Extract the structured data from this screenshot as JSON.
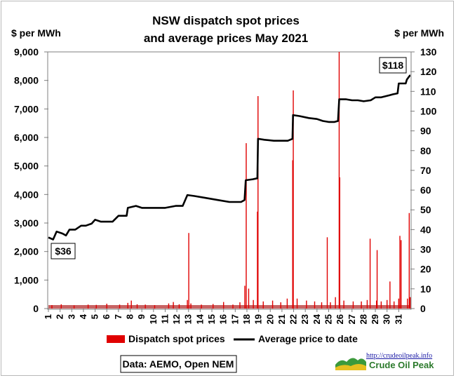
{
  "chart_data": {
    "type": "bar+line",
    "title_lines": [
      "NSW dispatch spot prices",
      "and average prices May 2021"
    ],
    "y_left_unit": "$ per MWh",
    "y_right_unit": "$ per MWh",
    "y_left_ticks": [
      "0",
      "1,000",
      "2,000",
      "3,000",
      "4,000",
      "5,000",
      "6,000",
      "7,000",
      "8,000",
      "9,000"
    ],
    "y_right_ticks": [
      "0",
      "10",
      "20",
      "30",
      "40",
      "50",
      "60",
      "70",
      "80",
      "90",
      "100",
      "110",
      "120",
      "130"
    ],
    "ylim_left": [
      0,
      9000
    ],
    "ylim_right": [
      0,
      130
    ],
    "x_ticks": [
      "1",
      "2",
      "3",
      "4",
      "5",
      "6",
      "7",
      "8",
      "9",
      "10",
      "11",
      "12",
      "13",
      "14",
      "15",
      "16",
      "17",
      "18",
      "19",
      "20",
      "21",
      "22",
      "23",
      "24",
      "25",
      "26",
      "27",
      "28",
      "29",
      "30",
      "31"
    ],
    "xlim_days": [
      1,
      32
    ],
    "legend": {
      "bar_label": "Dispatch spot prices",
      "line_label": "Average price to date",
      "placement": "bottom"
    },
    "colors": {
      "bars": "#e00000",
      "line": "#000000",
      "baseline_band": "#c86464"
    },
    "annotations": {
      "start_label": "$36",
      "end_label": "$118"
    },
    "source_text": "Data: AEMO, Open NEM",
    "logo": {
      "url_text": "http://crudeoilpeak.info",
      "name_text": "Crude Oil Peak"
    },
    "series": [
      {
        "name": "Dispatch spot prices",
        "axis": "left",
        "day_values": [
          [
            1.3,
            120
          ],
          [
            2.1,
            150
          ],
          [
            3.2,
            110
          ],
          [
            4.4,
            140
          ],
          [
            5.1,
            130
          ],
          [
            6.0,
            170
          ],
          [
            7.1,
            140
          ],
          [
            7.8,
            200
          ],
          [
            8.1,
            280
          ],
          [
            8.6,
            150
          ],
          [
            9.3,
            140
          ],
          [
            10.1,
            120
          ],
          [
            11.3,
            180
          ],
          [
            11.7,
            230
          ],
          [
            12.2,
            150
          ],
          [
            12.9,
            300
          ],
          [
            13.02,
            2650
          ],
          [
            13.2,
            180
          ],
          [
            14.1,
            140
          ],
          [
            15.1,
            160
          ],
          [
            16.0,
            230
          ],
          [
            16.8,
            140
          ],
          [
            17.4,
            220
          ],
          [
            17.82,
            800
          ],
          [
            17.94,
            5800
          ],
          [
            18.15,
            700
          ],
          [
            18.55,
            300
          ],
          [
            18.9,
            3400
          ],
          [
            18.95,
            7450
          ],
          [
            19.4,
            250
          ],
          [
            20.2,
            280
          ],
          [
            20.9,
            220
          ],
          [
            21.45,
            350
          ],
          [
            21.92,
            5200
          ],
          [
            21.97,
            7650
          ],
          [
            22.3,
            350
          ],
          [
            23.1,
            280
          ],
          [
            23.8,
            250
          ],
          [
            24.4,
            220
          ],
          [
            24.88,
            2500
          ],
          [
            25.15,
            220
          ],
          [
            25.58,
            400
          ],
          [
            25.9,
            9000
          ],
          [
            25.95,
            4600
          ],
          [
            26.3,
            280
          ],
          [
            27.1,
            250
          ],
          [
            27.8,
            250
          ],
          [
            28.3,
            300
          ],
          [
            28.55,
            2450
          ],
          [
            29.1,
            280
          ],
          [
            29.15,
            2050
          ],
          [
            29.5,
            250
          ],
          [
            30.0,
            300
          ],
          [
            30.25,
            950
          ],
          [
            30.6,
            250
          ],
          [
            31.0,
            350
          ],
          [
            31.1,
            2550
          ],
          [
            31.2,
            2400
          ],
          [
            31.75,
            350
          ],
          [
            31.9,
            3350
          ],
          [
            31.98,
            400
          ]
        ]
      },
      {
        "name": "Average price to date",
        "axis": "right",
        "day_values": [
          [
            1.0,
            36
          ],
          [
            1.4,
            35
          ],
          [
            1.7,
            39
          ],
          [
            2.2,
            38
          ],
          [
            2.5,
            37
          ],
          [
            2.8,
            40
          ],
          [
            3.3,
            40
          ],
          [
            3.8,
            42
          ],
          [
            4.2,
            42
          ],
          [
            4.7,
            43
          ],
          [
            5.0,
            45
          ],
          [
            5.5,
            44
          ],
          [
            6.0,
            44
          ],
          [
            6.5,
            44
          ],
          [
            7.0,
            47
          ],
          [
            7.7,
            47
          ],
          [
            7.8,
            51
          ],
          [
            8.5,
            52
          ],
          [
            9.0,
            51
          ],
          [
            10.0,
            51
          ],
          [
            11.0,
            51
          ],
          [
            11.9,
            52
          ],
          [
            12.5,
            52
          ],
          [
            12.9,
            57.5
          ],
          [
            13.5,
            57
          ],
          [
            14.5,
            56
          ],
          [
            15.5,
            55
          ],
          [
            16.5,
            54
          ],
          [
            17.5,
            54
          ],
          [
            17.8,
            55
          ],
          [
            17.9,
            65
          ],
          [
            18.5,
            65.5
          ],
          [
            18.9,
            66
          ],
          [
            18.95,
            86
          ],
          [
            19.5,
            85.5
          ],
          [
            20.3,
            85
          ],
          [
            21.0,
            85
          ],
          [
            21.5,
            85
          ],
          [
            21.9,
            86
          ],
          [
            21.95,
            98
          ],
          [
            22.5,
            97.5
          ],
          [
            23.3,
            96.5
          ],
          [
            24.0,
            96
          ],
          [
            24.5,
            95
          ],
          [
            25.0,
            94.5
          ],
          [
            25.5,
            94.5
          ],
          [
            25.8,
            95
          ],
          [
            25.9,
            106
          ],
          [
            26.5,
            106
          ],
          [
            27.0,
            105.5
          ],
          [
            27.5,
            105.5
          ],
          [
            28.0,
            105
          ],
          [
            28.6,
            105.5
          ],
          [
            29.0,
            107
          ],
          [
            29.5,
            107
          ],
          [
            30.2,
            108
          ],
          [
            30.5,
            108.5
          ],
          [
            30.9,
            109
          ],
          [
            31.0,
            114
          ],
          [
            31.4,
            114
          ],
          [
            31.6,
            114
          ],
          [
            31.7,
            116
          ],
          [
            31.95,
            118
          ],
          [
            32.0,
            118
          ]
        ]
      }
    ]
  }
}
